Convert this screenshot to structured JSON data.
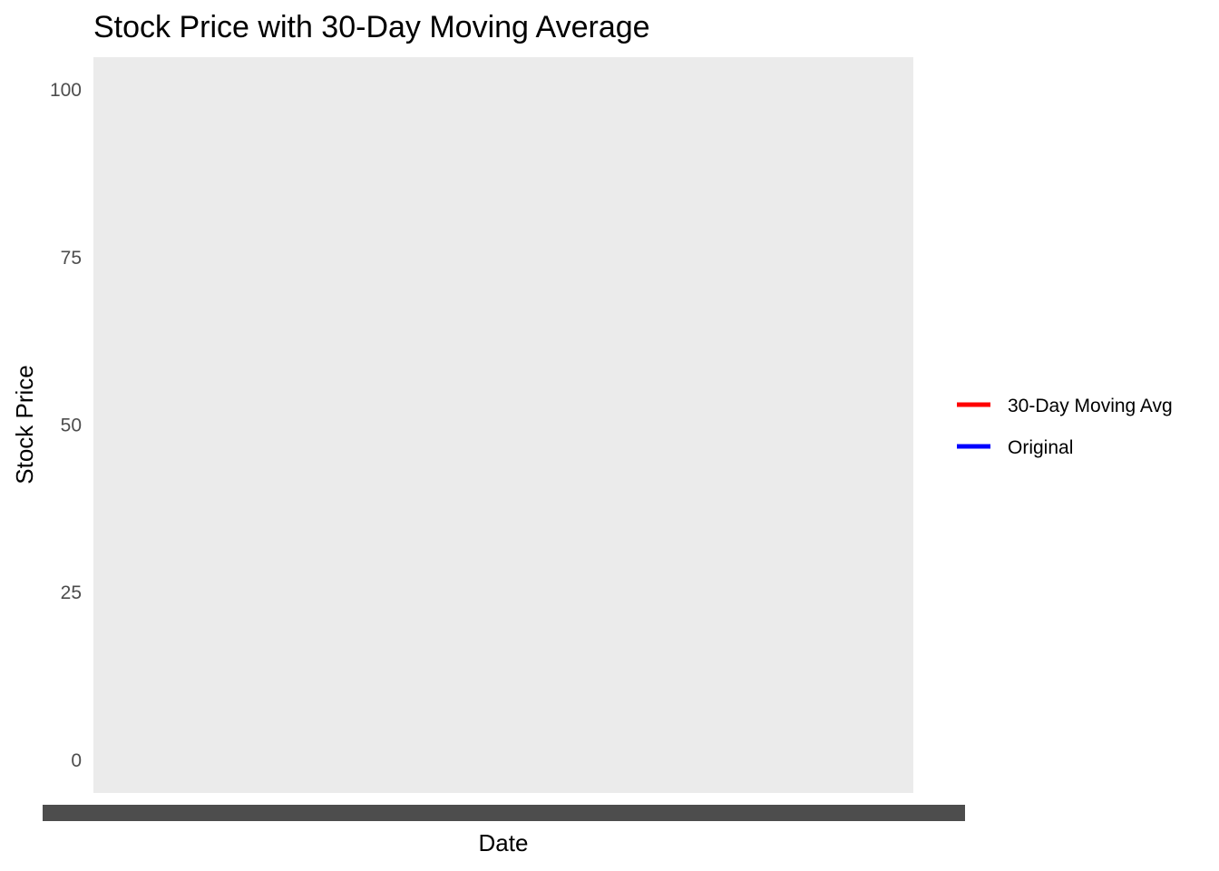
{
  "chart_data": {
    "type": "line",
    "title": "Stock Price with 30-Day Moving Average",
    "xlabel": "Date",
    "ylabel": "Stock Price",
    "ylim": [
      -4.9,
      104.9
    ],
    "y_ticks": [
      0,
      25,
      50,
      75,
      100
    ],
    "x_tick_labels_note": "overlapping dense date labels, unreadable",
    "grid": false,
    "panel_background": "#ebebeb",
    "legend_position": "right",
    "series": [
      {
        "name": "30-Day Moving Avg",
        "color": "#ff0000",
        "values": []
      },
      {
        "name": "Original",
        "color": "#0000ff",
        "values": []
      }
    ]
  }
}
